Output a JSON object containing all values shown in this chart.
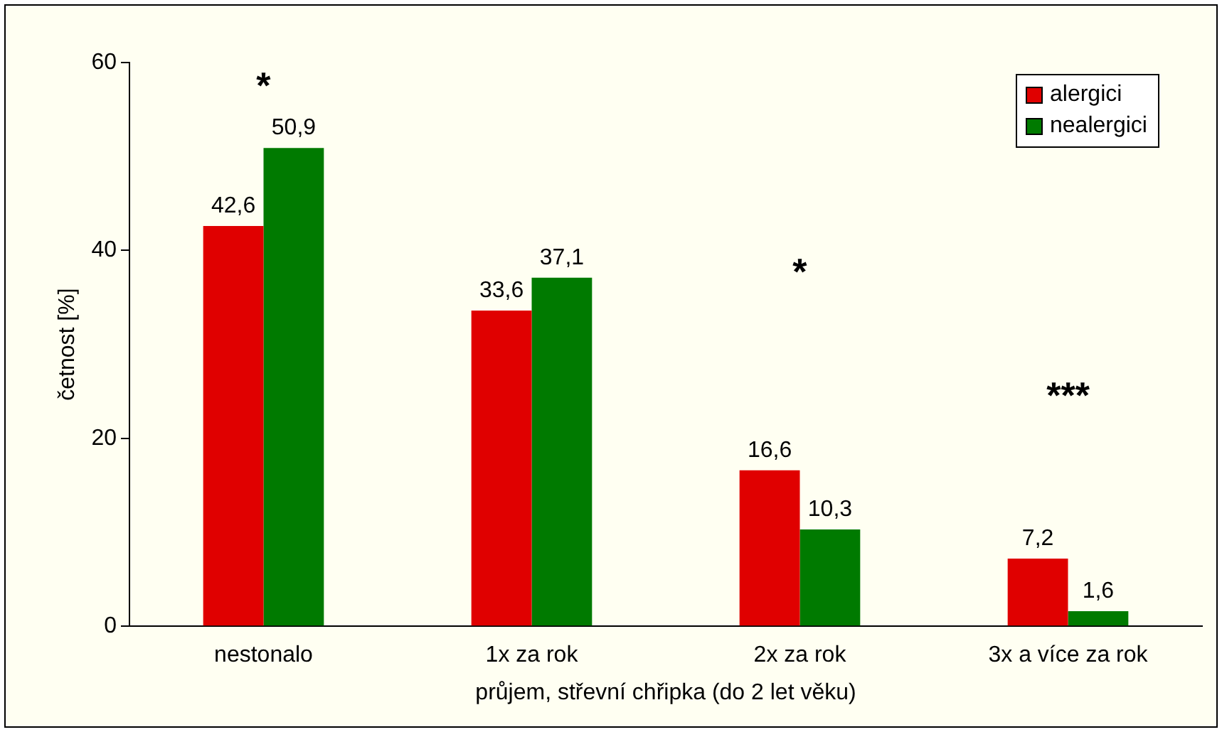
{
  "chart_data": {
    "type": "bar",
    "xlabel": "průjem, střevní chřipka (do 2 let věku)",
    "ylabel": "četnost [%]",
    "categories": [
      "nestonalo",
      "1x za rok",
      "2x za rok",
      "3x a více za rok"
    ],
    "series": [
      {
        "name": "alergici",
        "color": "#e00000",
        "values": [
          42.6,
          33.6,
          16.6,
          7.2
        ],
        "value_labels": [
          "42,6",
          "33,6",
          "16,6",
          "7,2"
        ]
      },
      {
        "name": "nealergici",
        "color": "#007a00",
        "values": [
          50.9,
          37.1,
          10.3,
          1.6
        ],
        "value_labels": [
          "50,9",
          "37,1",
          "10,3",
          "1,6"
        ]
      }
    ],
    "ylim": [
      0,
      60
    ],
    "yticks": [
      0,
      20,
      40,
      60
    ],
    "grid": false,
    "legend": "top right",
    "annotations": [
      "*",
      "*",
      "***"
    ]
  }
}
